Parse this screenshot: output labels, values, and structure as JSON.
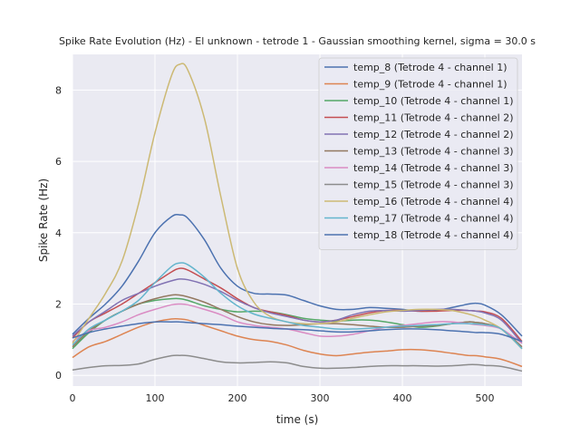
{
  "chart_data": {
    "type": "line",
    "title": "Spike Rate Evolution (Hz) - El unknown - tetrode 1 - Gaussian smoothing kernel, sigma = 30.0 s",
    "xlabel": "time (s)",
    "ylabel": "Spike Rate (Hz)",
    "xlim": [
      0,
      545
    ],
    "ylim": [
      -0.3,
      9.0
    ],
    "xticks": [
      0,
      100,
      200,
      300,
      400,
      500
    ],
    "yticks": [
      0,
      2,
      4,
      6,
      8
    ],
    "grid": true,
    "legend_position": "top-right",
    "x": [
      0,
      20,
      40,
      60,
      80,
      100,
      120,
      130,
      140,
      160,
      180,
      200,
      220,
      240,
      260,
      280,
      300,
      320,
      340,
      360,
      380,
      400,
      420,
      440,
      460,
      480,
      490,
      500,
      520,
      545
    ],
    "series": [
      {
        "name": "temp_8 (Tetrode 4 - channel 1)",
        "color": "#4c72b0",
        "values": [
          1.15,
          1.6,
          2.0,
          2.5,
          3.2,
          4.0,
          4.45,
          4.5,
          4.4,
          3.8,
          3.0,
          2.5,
          2.3,
          2.28,
          2.25,
          2.1,
          1.95,
          1.85,
          1.85,
          1.9,
          1.88,
          1.85,
          1.8,
          1.82,
          1.9,
          2.0,
          2.02,
          1.97,
          1.7,
          1.1
        ]
      },
      {
        "name": "temp_9 (Tetrode 4 - channel 1)",
        "color": "#dd8452",
        "values": [
          0.5,
          0.8,
          0.95,
          1.15,
          1.35,
          1.5,
          1.58,
          1.58,
          1.55,
          1.4,
          1.25,
          1.1,
          1.0,
          0.95,
          0.85,
          0.7,
          0.6,
          0.55,
          0.6,
          0.65,
          0.68,
          0.72,
          0.72,
          0.68,
          0.62,
          0.56,
          0.55,
          0.52,
          0.45,
          0.25
        ]
      },
      {
        "name": "temp_10 (Tetrode 4 - channel 1)",
        "color": "#55a868",
        "values": [
          0.75,
          1.2,
          1.55,
          1.8,
          2.0,
          2.1,
          2.15,
          2.15,
          2.1,
          1.95,
          1.85,
          1.78,
          1.8,
          1.78,
          1.7,
          1.6,
          1.55,
          1.52,
          1.55,
          1.55,
          1.5,
          1.42,
          1.35,
          1.38,
          1.45,
          1.5,
          1.48,
          1.45,
          1.3,
          0.75
        ]
      },
      {
        "name": "temp_11 (Tetrode 4 - channel 2)",
        "color": "#c44e52",
        "values": [
          1.05,
          1.5,
          1.75,
          2.0,
          2.3,
          2.6,
          2.9,
          3.0,
          2.95,
          2.7,
          2.45,
          2.15,
          1.9,
          1.78,
          1.68,
          1.55,
          1.5,
          1.55,
          1.65,
          1.75,
          1.82,
          1.82,
          1.8,
          1.8,
          1.82,
          1.82,
          1.8,
          1.78,
          1.6,
          0.95
        ]
      },
      {
        "name": "temp_12 (Tetrode 4 - channel 2)",
        "color": "#8172b3",
        "values": [
          1.1,
          1.5,
          1.8,
          2.1,
          2.3,
          2.5,
          2.65,
          2.7,
          2.68,
          2.55,
          2.35,
          2.1,
          1.9,
          1.75,
          1.65,
          1.55,
          1.5,
          1.55,
          1.7,
          1.8,
          1.82,
          1.8,
          1.82,
          1.85,
          1.85,
          1.82,
          1.8,
          1.75,
          1.55,
          0.9
        ]
      },
      {
        "name": "temp_13 (Tetrode 4 - channel 3)",
        "color": "#937860",
        "values": [
          0.8,
          1.25,
          1.55,
          1.8,
          2.0,
          2.15,
          2.25,
          2.25,
          2.2,
          2.05,
          1.85,
          1.65,
          1.5,
          1.42,
          1.4,
          1.42,
          1.45,
          1.45,
          1.42,
          1.38,
          1.35,
          1.35,
          1.38,
          1.4,
          1.45,
          1.5,
          1.48,
          1.45,
          1.3,
          0.8
        ]
      },
      {
        "name": "temp_14 (Tetrode 4 - channel 3)",
        "color": "#da8bc3",
        "values": [
          0.95,
          1.25,
          1.35,
          1.5,
          1.7,
          1.85,
          1.98,
          2.0,
          1.98,
          1.85,
          1.7,
          1.5,
          1.4,
          1.35,
          1.3,
          1.2,
          1.1,
          1.1,
          1.15,
          1.25,
          1.35,
          1.4,
          1.45,
          1.5,
          1.5,
          1.45,
          1.42,
          1.4,
          1.3,
          0.9
        ]
      },
      {
        "name": "temp_15 (Tetrode 4 - channel 3)",
        "color": "#8c8c8c",
        "values": [
          0.15,
          0.22,
          0.27,
          0.28,
          0.32,
          0.45,
          0.55,
          0.56,
          0.55,
          0.47,
          0.38,
          0.35,
          0.36,
          0.38,
          0.35,
          0.25,
          0.2,
          0.2,
          0.22,
          0.25,
          0.27,
          0.27,
          0.27,
          0.26,
          0.27,
          0.3,
          0.3,
          0.28,
          0.25,
          0.12
        ]
      },
      {
        "name": "temp_16 (Tetrode 4 - channel 4)",
        "color": "#ccb974",
        "values": [
          0.9,
          1.6,
          2.3,
          3.2,
          4.8,
          6.8,
          8.4,
          8.72,
          8.55,
          7.2,
          5.0,
          3.0,
          2.05,
          1.65,
          1.5,
          1.45,
          1.45,
          1.5,
          1.6,
          1.7,
          1.78,
          1.82,
          1.85,
          1.85,
          1.82,
          1.72,
          1.65,
          1.55,
          1.3,
          0.75
        ]
      },
      {
        "name": "temp_17 (Tetrode 4 - channel 4)",
        "color": "#64b5cd",
        "values": [
          0.85,
          1.3,
          1.55,
          1.8,
          2.1,
          2.6,
          3.05,
          3.15,
          3.1,
          2.75,
          2.3,
          1.95,
          1.72,
          1.6,
          1.5,
          1.4,
          1.35,
          1.3,
          1.3,
          1.32,
          1.35,
          1.38,
          1.4,
          1.42,
          1.45,
          1.45,
          1.44,
          1.42,
          1.3,
          0.75
        ]
      },
      {
        "name": "temp_18 (Tetrode 4 - channel 4)",
        "color": "#4c72b0",
        "values": [
          1.05,
          1.2,
          1.3,
          1.38,
          1.45,
          1.5,
          1.5,
          1.5,
          1.48,
          1.45,
          1.42,
          1.38,
          1.35,
          1.32,
          1.3,
          1.28,
          1.25,
          1.22,
          1.22,
          1.25,
          1.28,
          1.3,
          1.3,
          1.28,
          1.25,
          1.22,
          1.2,
          1.2,
          1.15,
          0.95
        ]
      }
    ]
  }
}
